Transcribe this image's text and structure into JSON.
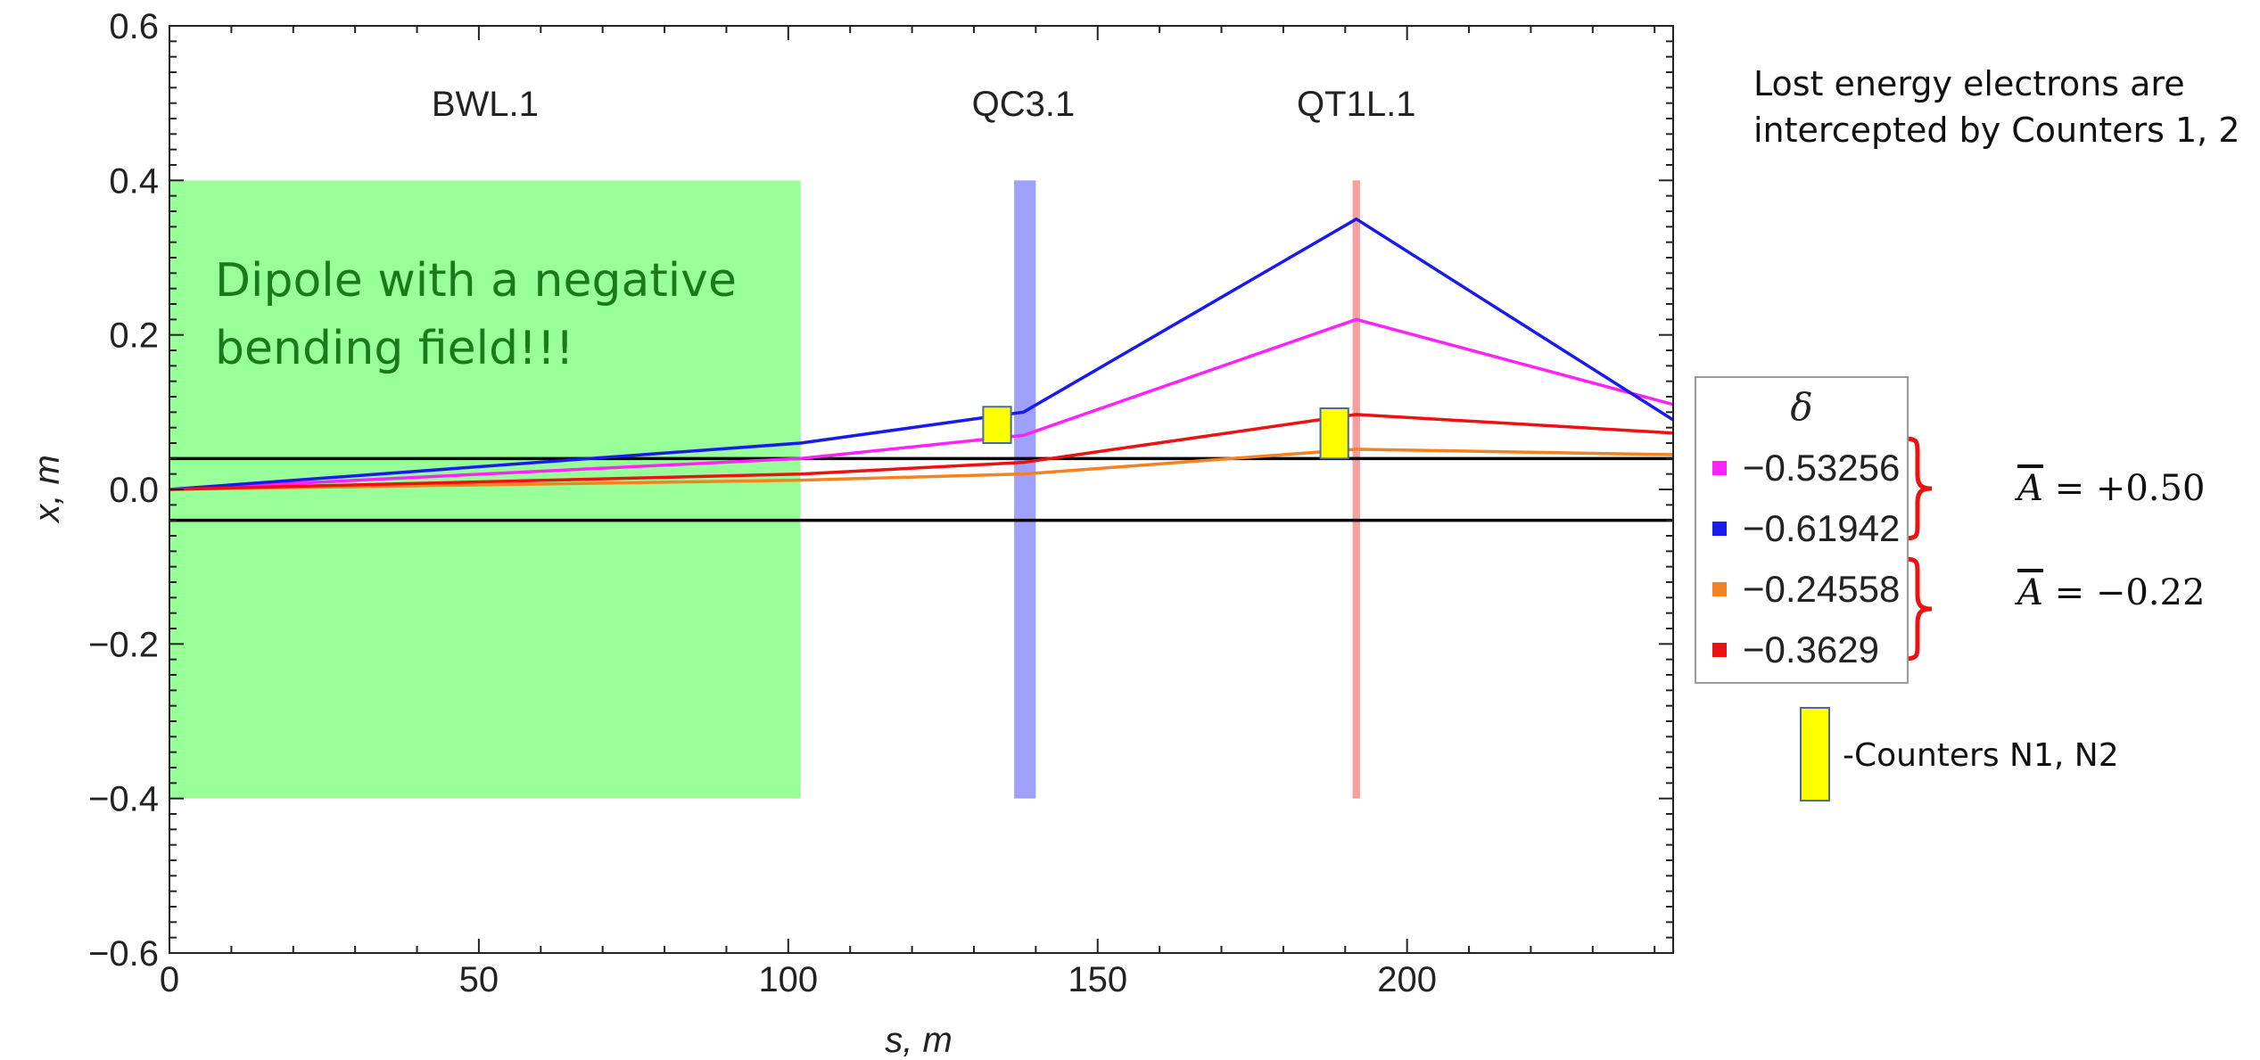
{
  "chart_data": {
    "type": "line",
    "xlabel": "s, m",
    "ylabel": "x, m",
    "xlim": [
      0,
      243
    ],
    "ylim": [
      -0.6,
      0.6
    ],
    "x_ticks": [
      0,
      50,
      100,
      150,
      200
    ],
    "y_ticks": [
      0.6,
      0.4,
      0.2,
      0.0,
      -0.2,
      -0.4,
      -0.6
    ],
    "x_tick_labels": [
      "0",
      "50",
      "100",
      "150",
      "200"
    ],
    "y_tick_labels": [
      "0.6",
      "0.4",
      "0.2",
      "0.0",
      "−0.2",
      "−0.4",
      "−0.6"
    ],
    "elements": [
      {
        "name": "BWL.1",
        "x_range": [
          0,
          102
        ],
        "y_range": [
          -0.4,
          0.4
        ],
        "color": "#99ff99",
        "label_x": 51
      },
      {
        "name": "QC3.1",
        "x_range": [
          136.5,
          140
        ],
        "y_range": [
          -0.4,
          0.4
        ],
        "color": "#a0a0ff",
        "label_x": 138
      },
      {
        "name": "QT1L.1",
        "x_range": [
          191.2,
          192.4
        ],
        "y_range": [
          -0.4,
          0.4
        ],
        "color": "#f4a0a0",
        "label_x": 191.8
      }
    ],
    "aperture_lines": [
      0.04,
      -0.04
    ],
    "series": [
      {
        "name": "−0.53256",
        "color": "#ff22ff",
        "x": [
          0,
          102,
          138,
          191.8,
          243
        ],
        "y": [
          0,
          0.04,
          0.07,
          0.22,
          0.11
        ]
      },
      {
        "name": "−0.61942",
        "color": "#1a1aee",
        "x": [
          0,
          102,
          138,
          191.8,
          243
        ],
        "y": [
          0,
          0.06,
          0.1,
          0.35,
          0.09
        ]
      },
      {
        "name": "−0.24558",
        "color": "#f58220",
        "x": [
          0,
          102,
          138,
          191.8,
          243
        ],
        "y": [
          0,
          0.012,
          0.02,
          0.052,
          0.045
        ]
      },
      {
        "name": "−0.3629",
        "color": "#ee1111",
        "x": [
          0,
          102,
          138,
          191.8,
          243
        ],
        "y": [
          0,
          0.02,
          0.035,
          0.097,
          0.073
        ]
      }
    ],
    "counters": [
      {
        "x_range": [
          131.5,
          136
        ],
        "y_range": [
          0.06,
          0.107
        ]
      },
      {
        "x_range": [
          186,
          190.5
        ],
        "y_range": [
          0.04,
          0.105
        ]
      }
    ],
    "annotation": {
      "lines": [
        "Dipole with a negative",
        "bending field!!!"
      ],
      "color": "#1a7a1a"
    },
    "legend": {
      "title": "δ",
      "position": "right"
    }
  },
  "side_note": {
    "line1": "Lost energy electrons are",
    "line2": "intercepted by Counters 1, 2"
  },
  "groups": [
    {
      "label_base": "A",
      "label_value": "= +0.50"
    },
    {
      "label_base": "A",
      "label_value": "= −0.22"
    }
  ],
  "counter_key_label": "-Counters N1, N2",
  "colors": {
    "bracket": "#ee1111",
    "counter": "#ffff00",
    "axis": "#222222"
  }
}
